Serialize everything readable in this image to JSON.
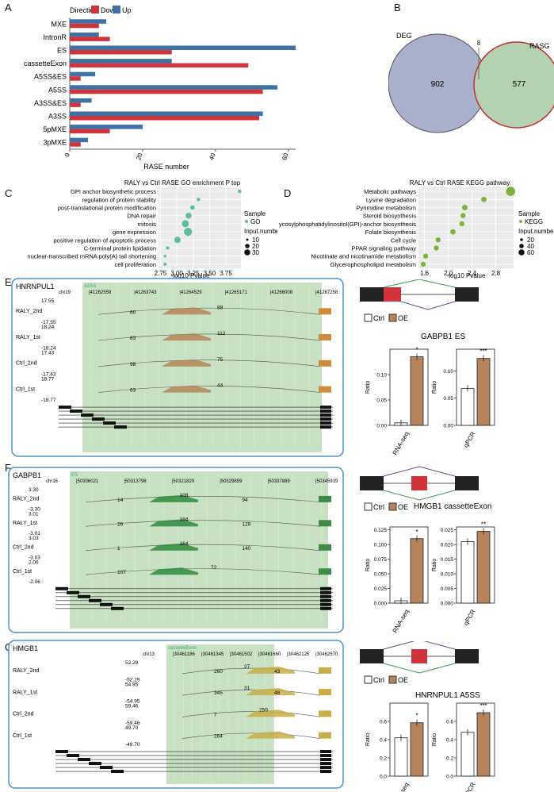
{
  "panel_letters": {
    "A": "A",
    "B": "B",
    "C": "C",
    "D": "D",
    "E": "E",
    "F": "F",
    "G": "G"
  },
  "colors": {
    "down": "#d0343a",
    "up": "#3f72a4",
    "deg": "#a9b0cc",
    "rasg": "#b4d1b2",
    "green_region": "#bfdcb8",
    "gold": "#c9ad47",
    "green": "#2e8a3e",
    "purple": "#8f4a9e",
    "orange": "#d08a3c",
    "brown": "#b5845c"
  },
  "chart_data": [
    {
      "type": "bar",
      "panel": "A",
      "legend": {
        "title": "Direction",
        "items": [
          "Down",
          "Up"
        ]
      },
      "categories": [
        "MXE",
        "IntronR",
        "ES",
        "cassetteExon",
        "A5SS&ES",
        "A5SS",
        "A3SS&ES",
        "A3SS",
        "5pMXE",
        "3pMXE"
      ],
      "series": [
        {
          "name": "Down",
          "values": [
            8,
            11,
            28,
            49,
            3,
            53,
            3,
            52,
            11,
            3
          ]
        },
        {
          "name": "Up",
          "values": [
            10,
            8,
            62,
            28,
            7,
            57,
            6,
            53,
            20,
            5
          ]
        }
      ],
      "xlabel": "RASE number",
      "xticks": [
        "0",
        "20",
        "40",
        "60"
      ],
      "xlim": [
        0,
        62
      ]
    },
    {
      "type": "venn",
      "panel": "B",
      "sets": [
        {
          "name": "DEG",
          "only": "902"
        },
        {
          "name": "RASG",
          "only": "577"
        }
      ],
      "intersection": "8"
    },
    {
      "type": "scatter",
      "panel": "C",
      "title": "RALY vs Ctrl RASE GO enrichment P top",
      "xlabel": "-log10 Pvalue",
      "xticks": [
        "2.75",
        "3.00",
        "3.25",
        "3.50",
        "3.75"
      ],
      "xlim": [
        2.72,
        3.98
      ],
      "terms": [
        "GPI anchor biosynthetic process",
        "regulation of protein stability",
        "post-translational protein modification",
        "DNA repair",
        "mitosis",
        "gene expression",
        "positive regulation of apoptotic process",
        "C-terminal protein lipidation",
        "nuclear-transcribed mRNA poly(A) tail shortening",
        "cell proliferation"
      ],
      "x": [
        3.96,
        3.33,
        3.24,
        3.18,
        3.13,
        3.17,
        3.01,
        2.86,
        2.82,
        2.82
      ],
      "size": [
        5,
        5,
        8,
        14,
        20,
        26,
        16,
        4,
        3,
        4
      ],
      "legend_title": "Sample",
      "legend_item": "GO",
      "size_title": "Input.number",
      "size_labels": [
        "10",
        "20",
        "30"
      ]
    },
    {
      "type": "scatter",
      "panel": "D",
      "title": "RALY vs Ctrl RASE KEGG pathway",
      "xlabel": "-log10 Pvalue",
      "xticks": [
        "1.6",
        "2.0",
        "2.4",
        "2.8"
      ],
      "xlim": [
        1.5,
        3.1
      ],
      "terms": [
        "Metabolic pathways",
        "Lysine degradation",
        "Pyrimidine metabolism",
        "Steroid biosynthesis",
        "Glycosylphosphatidylinositol(GPI)-anchor biosynthesis",
        "Folate biosynthesis",
        "Cell cycle",
        "PPAR signaling pathway",
        "Nicotinate and nicotinamide metabolism",
        "Glycerophospholipid metabolism"
      ],
      "x": [
        3.05,
        2.6,
        2.28,
        2.25,
        2.23,
        2.08,
        1.83,
        1.8,
        1.62,
        1.58
      ],
      "size": [
        60,
        20,
        22,
        18,
        18,
        20,
        18,
        18,
        18,
        18
      ],
      "legend_title": "Sample",
      "legend_item": "KEGG",
      "size_title": "Input.number",
      "size_labels": [
        "20",
        "40",
        "60"
      ]
    },
    {
      "type": "bar",
      "panel": "E",
      "group": "RNA-seq",
      "categories": [
        "Ctrl",
        "OE"
      ],
      "values": [
        0.005,
        0.135
      ],
      "ylim": [
        0,
        0.15
      ],
      "yticks": [
        "0.00",
        "0.05",
        "0.10"
      ],
      "ylabel": "Ratio",
      "star": "*"
    },
    {
      "type": "bar",
      "panel": "E",
      "group": "qPCR",
      "categories": [
        "Ctrl",
        "OE"
      ],
      "values": [
        0.068,
        0.123
      ],
      "ylim": [
        0,
        0.14
      ],
      "yticks": [
        "0.00",
        "0.05",
        "0.10"
      ],
      "ylabel": "Ratio",
      "star": "***"
    },
    {
      "type": "bar",
      "panel": "F",
      "group": "RNA-seq",
      "categories": [
        "Ctrl",
        "OE"
      ],
      "values": [
        0.004,
        0.11
      ],
      "ylim": [
        0,
        0.13
      ],
      "yticks": [
        "0.000",
        "0.025",
        "0.050",
        "0.075",
        "0.100",
        "0.125"
      ],
      "ylabel": "Ratio",
      "star": "*"
    },
    {
      "type": "bar",
      "panel": "F",
      "group": "qPCR",
      "categories": [
        "Ctrl",
        "OE"
      ],
      "values": [
        0.021,
        0.0245
      ],
      "ylim": [
        0,
        0.026
      ],
      "yticks": [
        "0.000",
        "0.005",
        "0.010",
        "0.015",
        "0.020",
        "0.025"
      ],
      "ylabel": "Ratio",
      "star": "**"
    },
    {
      "type": "bar",
      "panel": "G",
      "group": "RNA-seq",
      "categories": [
        "Ctrl",
        "OE"
      ],
      "values": [
        0.42,
        0.585
      ],
      "ylim": [
        0,
        0.8
      ],
      "yticks": [
        "0.0",
        "0.2",
        "0.4",
        "0.6"
      ],
      "ylabel": "Ratio",
      "star": "*"
    },
    {
      "type": "bar",
      "panel": "G",
      "group": "qPCR",
      "categories": [
        "Ctrl",
        "OE"
      ],
      "values": [
        0.48,
        0.695
      ],
      "ylim": [
        0,
        0.8
      ],
      "yticks": [
        "0.0",
        "0.2",
        "0.4",
        "0.6"
      ],
      "ylabel": "Ratio",
      "star": "***"
    }
  ],
  "bar_legend": {
    "ctrl": "Ctrl",
    "oe": "OE"
  },
  "event_titles": {
    "E": "GABPB1 ES",
    "F": "HMGB1 cassetteExon",
    "G": "HNRNPUL1 A5SS"
  },
  "tracks": {
    "E": {
      "gene": "HNRNPUL1",
      "chr": "chr19",
      "region": "A5SS",
      "coords": [
        "41262559",
        "41263743",
        "41264529",
        "41265171",
        "41266008",
        "41267258"
      ],
      "samples": [
        {
          "name": "RALY_2nd",
          "top": "17.55",
          "bottom": "-17.55",
          "junctions": [
            "60",
            "89"
          ]
        },
        {
          "name": "RALY_1st",
          "top": "18.24",
          "bottom": "-18.24",
          "junctions": [
            "83",
            "112"
          ]
        },
        {
          "name": "Ctrl_2nd",
          "top": "17.43",
          "bottom": "-17.43",
          "junctions": [
            "98",
            "75"
          ]
        },
        {
          "name": "Ctrl_1st",
          "top": "18.77",
          "bottom": "-18.77",
          "junctions": [
            "63",
            "44"
          ]
        }
      ]
    },
    "F": {
      "gene": "GABPB1",
      "chr": "chr15",
      "region": "ES",
      "coords": [
        "50306021",
        "50313798",
        "50321829",
        "50329859",
        "50337889",
        "50345919"
      ],
      "samples": [
        {
          "name": "RALY_2nd",
          "top": "3.30",
          "bottom": "-3.30",
          "junctions": [
            "14",
            "108",
            "94"
          ]
        },
        {
          "name": "RALY_1st",
          "top": "3.01",
          "bottom": "-3.01",
          "junctions": [
            "26",
            "194",
            "129"
          ]
        },
        {
          "name": "Ctrl_2nd",
          "top": "3.03",
          "bottom": "-3.03",
          "junctions": [
            "1",
            "164",
            "140"
          ]
        },
        {
          "name": "Ctrl_1st",
          "top": "2.06",
          "bottom": "-2.06",
          "junctions": [
            "107",
            "72"
          ]
        }
      ]
    },
    "G": {
      "gene": "HMGB1",
      "chr": "chr13",
      "region": "cassetteExon",
      "coords": [
        "30461186",
        "30461345",
        "30461502",
        "30461660",
        "30462125",
        "30462570"
      ],
      "samples": [
        {
          "name": "RALY_2nd",
          "top": "52.29",
          "bottom": "-52.29",
          "junctions": [
            "260",
            "27",
            "43"
          ]
        },
        {
          "name": "RALY_1st",
          "top": "54.95",
          "bottom": "-54.95",
          "junctions": [
            "345",
            "31",
            "48"
          ]
        },
        {
          "name": "Ctrl_2nd",
          "top": "59.46",
          "bottom": "-59.46",
          "junctions": [
            "7",
            "250"
          ]
        },
        {
          "name": "Ctrl_1st",
          "top": "49.70",
          "bottom": "-49.70",
          "junctions": [
            "264"
          ]
        }
      ]
    }
  }
}
